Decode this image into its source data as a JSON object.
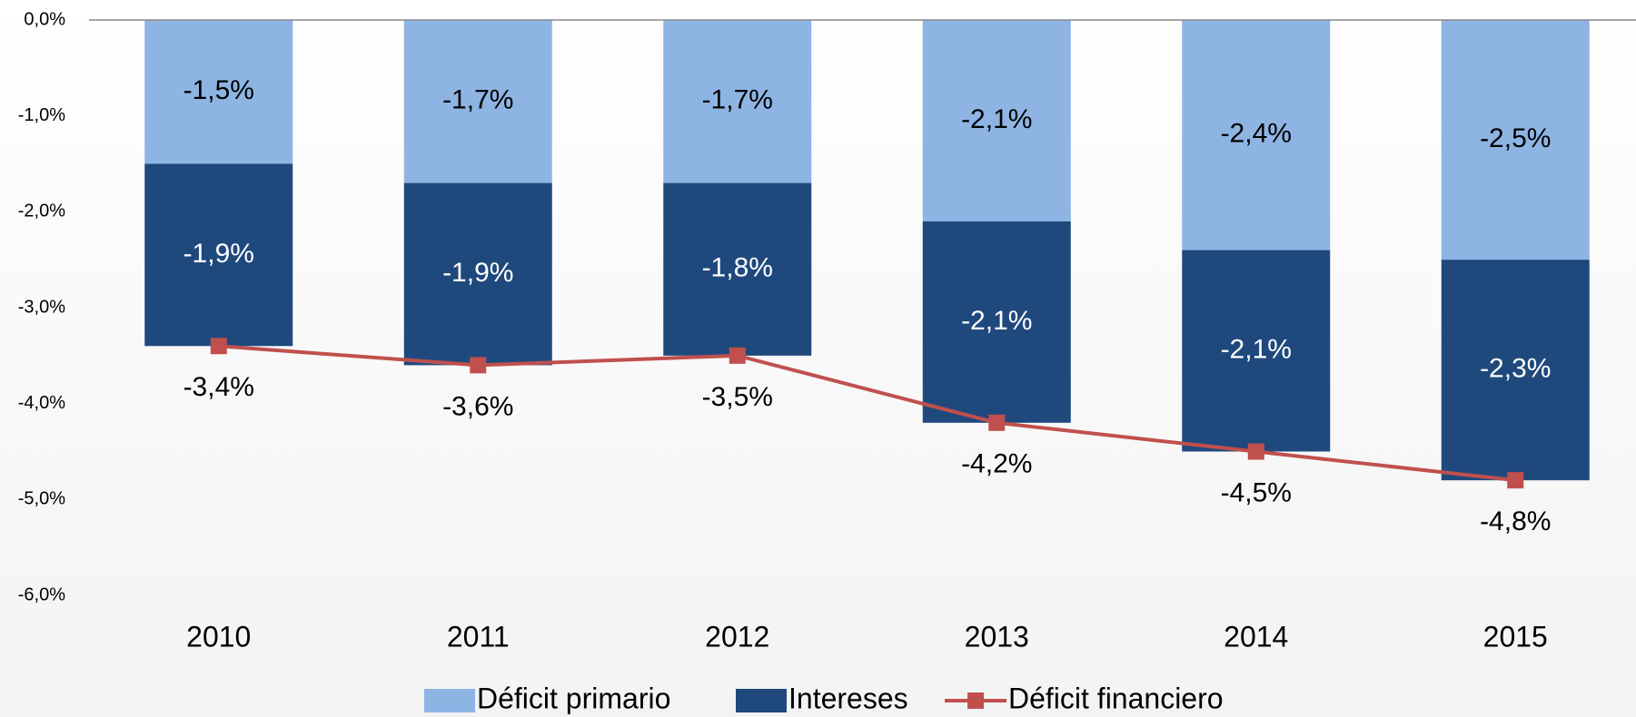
{
  "chart_data": {
    "type": "stacked-bar-line",
    "categories": [
      "2010",
      "2011",
      "2012",
      "2013",
      "2014",
      "2015"
    ],
    "series": [
      {
        "name": "Déficit primario",
        "type": "bar",
        "color": "#8eb4e3",
        "values": [
          -1.5,
          -1.7,
          -1.7,
          -2.1,
          -2.4,
          -2.5
        ],
        "value_labels": [
          "-1,5%",
          "-1,7%",
          "-1,7%",
          "-2,1%",
          "-2,4%",
          "-2,5%"
        ]
      },
      {
        "name": "Intereses",
        "type": "bar",
        "color": "#1f497d",
        "values": [
          -1.9,
          -1.9,
          -1.8,
          -2.1,
          -2.1,
          -2.3
        ],
        "value_labels": [
          "-1,9%",
          "-1,9%",
          "-1,8%",
          "-2,1%",
          "-2,1%",
          "-2,3%"
        ]
      },
      {
        "name": "Déficit financiero",
        "type": "line",
        "color": "#c0504d",
        "values": [
          -3.4,
          -3.6,
          -3.5,
          -4.2,
          -4.5,
          -4.8
        ],
        "value_labels": [
          "-3,4%",
          "-3,6%",
          "-3,5%",
          "-4,2%",
          "-4,5%",
          "-4,8%"
        ]
      }
    ],
    "ylim": [
      -6,
      0
    ],
    "yticks": [
      {
        "value": 0,
        "label": "0,0%"
      },
      {
        "value": -1,
        "label": "-1,0%"
      },
      {
        "value": -2,
        "label": "-2,0%"
      },
      {
        "value": -3,
        "label": "-3,0%"
      },
      {
        "value": -4,
        "label": "-4,0%"
      },
      {
        "value": -5,
        "label": "-5,0%"
      },
      {
        "value": -6,
        "label": "-6,0%"
      }
    ],
    "legend": "bottom"
  }
}
